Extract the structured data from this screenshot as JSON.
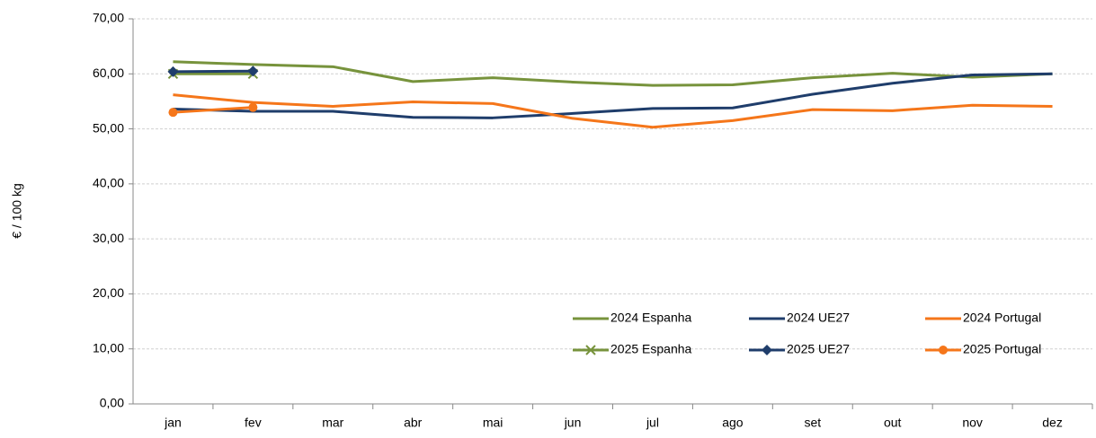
{
  "chart_data": {
    "type": "line",
    "y_label": "€ / 100 kg",
    "categories": [
      "jan",
      "fev",
      "mar",
      "abr",
      "mai",
      "jun",
      "jul",
      "ago",
      "set",
      "out",
      "nov",
      "dez"
    ],
    "series": [
      {
        "name": "2024 Espanha",
        "color": "#77933c",
        "marker": null,
        "values": [
          62.2,
          61.7,
          61.3,
          58.6,
          59.3,
          58.5,
          57.9,
          58.0,
          59.3,
          60.1,
          59.4,
          60.0
        ]
      },
      {
        "name": "2024 UE27",
        "color": "#1f3d6b",
        "marker": null,
        "values": [
          53.6,
          53.2,
          53.2,
          52.1,
          52.0,
          52.8,
          53.7,
          53.8,
          56.3,
          58.3,
          59.8,
          60.0
        ]
      },
      {
        "name": "2024 Portugal",
        "color": "#f5761a",
        "marker": null,
        "values": [
          56.2,
          54.8,
          54.1,
          54.9,
          54.6,
          51.9,
          50.3,
          51.5,
          53.5,
          53.3,
          54.3,
          54.1
        ]
      },
      {
        "name": "2025 Espanha",
        "color": "#77933c",
        "marker": "x",
        "values": [
          60.0,
          60.0,
          null,
          null,
          null,
          null,
          null,
          null,
          null,
          null,
          null,
          null
        ]
      },
      {
        "name": "2025 UE27",
        "color": "#1f3d6b",
        "marker": "diamond",
        "values": [
          60.4,
          60.5,
          null,
          null,
          null,
          null,
          null,
          null,
          null,
          null,
          null,
          null
        ]
      },
      {
        "name": "2025 Portugal",
        "color": "#f5761a",
        "marker": "circle",
        "values": [
          53.0,
          53.9,
          null,
          null,
          null,
          null,
          null,
          null,
          null,
          null,
          null,
          null
        ]
      }
    ],
    "ylim": [
      0,
      70
    ],
    "yticks": [
      {
        "value": 0,
        "label": "0,00"
      },
      {
        "value": 10,
        "label": "10,00"
      },
      {
        "value": 20,
        "label": "20,00"
      },
      {
        "value": 30,
        "label": "30,00"
      },
      {
        "value": 40,
        "label": "40,00"
      },
      {
        "value": 50,
        "label": "50,00"
      },
      {
        "value": 60,
        "label": "60,00"
      },
      {
        "value": 70,
        "label": "70,00"
      }
    ],
    "grid": true,
    "legend": "lower right"
  }
}
